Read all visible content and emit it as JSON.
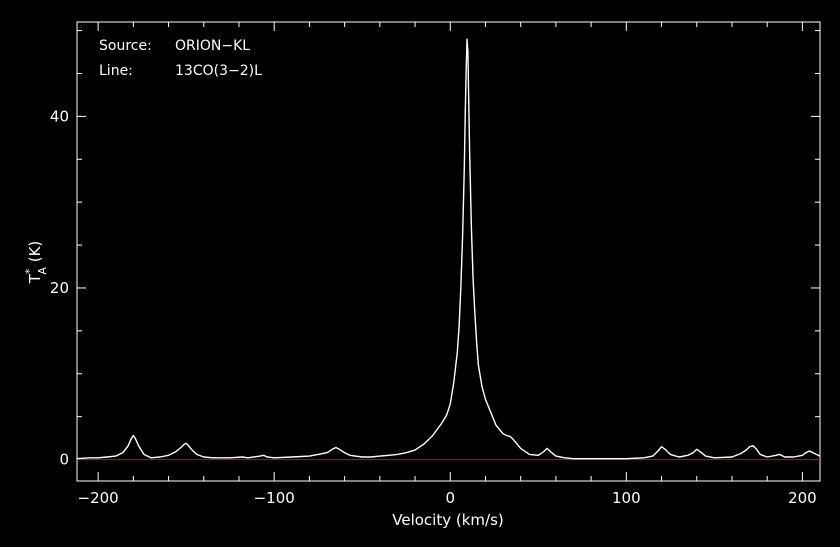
{
  "chart_data": {
    "type": "line",
    "title": "",
    "xlabel": "Velocity (km/s)",
    "ylabel_base": "T",
    "ylabel_sup": "*",
    "ylabel_sub": "A",
    "ylabel_unit": " (K)",
    "xlim": [
      -212,
      210
    ],
    "ylim": [
      -2.5,
      51
    ],
    "xticks": [
      -200,
      -100,
      0,
      100,
      200
    ],
    "xtick_labels": [
      "−200",
      "−100",
      "0",
      "100",
      "200"
    ],
    "yticks": [
      0,
      20,
      40
    ],
    "ytick_labels": [
      "0",
      "20",
      "40"
    ],
    "grid": false,
    "annotations": [
      {
        "key": "Source:",
        "value": "ORION−KL"
      },
      {
        "key": "Line:",
        "value": "13CO(3−2)L"
      }
    ],
    "baseline": {
      "y": 0,
      "color": "#cc0000"
    },
    "colors": {
      "background": "#000000",
      "axes": "#ffffff",
      "spectrum": "#ffffff"
    },
    "series": [
      {
        "x": [
          -212,
          -205,
          -200,
          -195,
          -190,
          -186,
          -183,
          -181,
          -180,
          -179,
          -177,
          -174,
          -170,
          -165,
          -160,
          -156,
          -153,
          -151,
          -150,
          -149,
          -147,
          -144,
          -140,
          -135,
          -125,
          -118,
          -115,
          -108,
          -106,
          -104,
          -100,
          -90,
          -80,
          -75,
          -70,
          -67,
          -65,
          -63,
          -60,
          -57,
          -50,
          -45,
          -40,
          -35,
          -30,
          -25,
          -20,
          -15,
          -10,
          -5,
          -2,
          0,
          2,
          4,
          5,
          6,
          7,
          8,
          8.5,
          9,
          9.5,
          10,
          10.5,
          11,
          12,
          13,
          14,
          15,
          16,
          18,
          20,
          23,
          26,
          30,
          32,
          34,
          36,
          40,
          45,
          50,
          53,
          55,
          57,
          60,
          65,
          70,
          80,
          90,
          100,
          110,
          115,
          118,
          120,
          122,
          125,
          130,
          135,
          138,
          140,
          142,
          145,
          150,
          160,
          165,
          168,
          170,
          172,
          174,
          176,
          180,
          185,
          187,
          190,
          195,
          200,
          202,
          204,
          206,
          210
        ],
        "values": [
          0.1,
          0.2,
          0.2,
          0.3,
          0.4,
          0.8,
          1.6,
          2.5,
          2.8,
          2.5,
          1.6,
          0.6,
          0.2,
          0.3,
          0.5,
          0.9,
          1.4,
          1.8,
          1.9,
          1.7,
          1.2,
          0.6,
          0.3,
          0.2,
          0.2,
          0.3,
          0.2,
          0.4,
          0.5,
          0.3,
          0.2,
          0.3,
          0.4,
          0.6,
          0.8,
          1.2,
          1.4,
          1.2,
          0.8,
          0.5,
          0.3,
          0.3,
          0.4,
          0.5,
          0.6,
          0.8,
          1.1,
          1.8,
          2.8,
          4.2,
          5.2,
          6.5,
          9.0,
          12.5,
          15.5,
          20.0,
          26.0,
          34.0,
          40.0,
          45.0,
          49.0,
          47.5,
          42.0,
          36.0,
          27.0,
          21.0,
          17.0,
          13.5,
          11.0,
          8.5,
          7.0,
          5.5,
          4.0,
          3.0,
          2.8,
          2.7,
          2.3,
          1.3,
          0.6,
          0.5,
          0.9,
          1.3,
          0.9,
          0.4,
          0.2,
          0.1,
          0.1,
          0.1,
          0.1,
          0.2,
          0.4,
          1.0,
          1.5,
          1.2,
          0.6,
          0.3,
          0.5,
          0.8,
          1.2,
          0.9,
          0.4,
          0.2,
          0.3,
          0.7,
          1.1,
          1.5,
          1.6,
          1.2,
          0.6,
          0.3,
          0.5,
          0.6,
          0.3,
          0.3,
          0.5,
          0.8,
          1.0,
          0.8,
          0.4
        ]
      }
    ]
  }
}
